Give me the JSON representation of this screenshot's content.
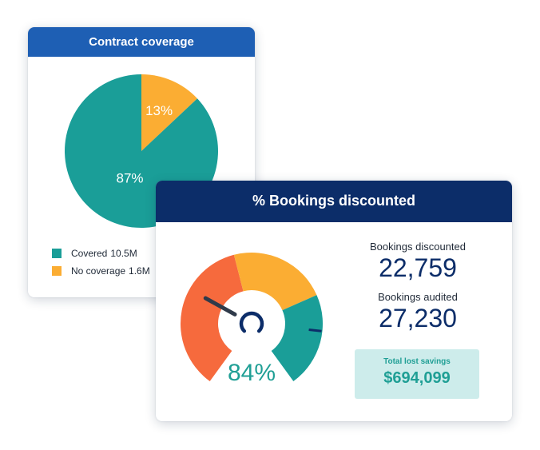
{
  "colors": {
    "teal": "#1a9e98",
    "yellow": "#fbad33",
    "orange": "#f66a3d",
    "navy": "#0c2d69",
    "blue": "#1e5fb4",
    "savings_bg": "#cdeceb"
  },
  "contract_card": {
    "title": "Contract coverage",
    "chart_data": {
      "type": "pie",
      "slices": [
        {
          "label": "Covered",
          "value": 87,
          "display": "87%",
          "color": "#1a9e98"
        },
        {
          "label": "No coverage",
          "value": 13,
          "display": "13%",
          "color": "#fbad33"
        }
      ]
    },
    "legend": [
      {
        "label": "Covered",
        "value": "10.5M",
        "color": "#1a9e98"
      },
      {
        "label": "No coverage",
        "value": "1.6M",
        "color": "#fbad33"
      }
    ]
  },
  "bookings_card": {
    "title": "% Bookings discounted",
    "gauge": {
      "value_label": "84%",
      "value": 84,
      "segments": [
        {
          "color": "#f66a3d",
          "share": 45
        },
        {
          "color": "#fbad33",
          "share": 28
        },
        {
          "color": "#1a9e98",
          "share": 27
        }
      ],
      "needle_icon": "gauge-needle-icon"
    },
    "stats": [
      {
        "label": "Bookings discounted",
        "value": "22,759"
      },
      {
        "label": "Bookings audited",
        "value": "27,230"
      }
    ],
    "savings": {
      "label": "Total lost savings",
      "value": "$694,099"
    }
  }
}
